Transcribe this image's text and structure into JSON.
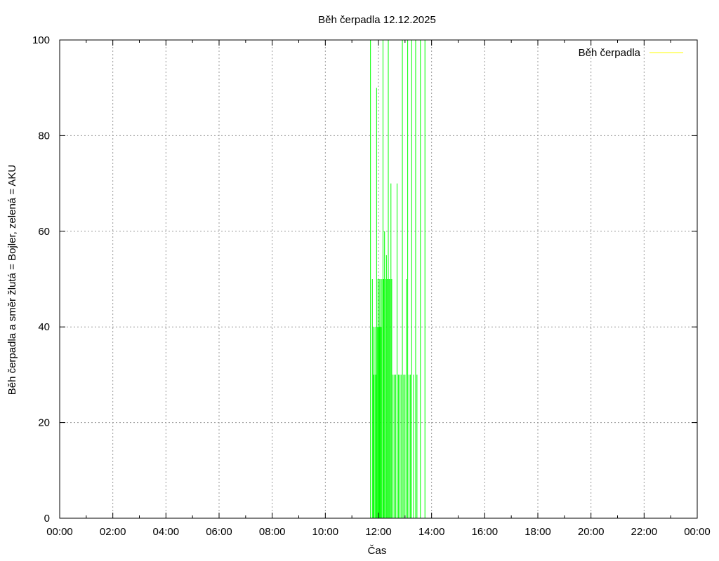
{
  "chart_data": {
    "type": "line",
    "title": "Běh čerpadla 12.12.2025",
    "xlabel": "Čas",
    "ylabel": "Běh čerpadla a směr žlutá = Bojler, zelená = AKU",
    "xlim": [
      0,
      24
    ],
    "ylim": [
      0,
      100
    ],
    "x_ticks": [
      {
        "value": 0,
        "label": "00:00"
      },
      {
        "value": 2,
        "label": "02:00"
      },
      {
        "value": 4,
        "label": "04:00"
      },
      {
        "value": 6,
        "label": "06:00"
      },
      {
        "value": 8,
        "label": "08:00"
      },
      {
        "value": 10,
        "label": "10:00"
      },
      {
        "value": 12,
        "label": "12:00"
      },
      {
        "value": 14,
        "label": "14:00"
      },
      {
        "value": 16,
        "label": "16:00"
      },
      {
        "value": 18,
        "label": "18:00"
      },
      {
        "value": 20,
        "label": "20:00"
      },
      {
        "value": 22,
        "label": "22:00"
      },
      {
        "value": 24,
        "label": "00:00"
      }
    ],
    "y_ticks": [
      {
        "value": 0,
        "label": "0"
      },
      {
        "value": 20,
        "label": "20"
      },
      {
        "value": 40,
        "label": "40"
      },
      {
        "value": 60,
        "label": "60"
      },
      {
        "value": 80,
        "label": "80"
      },
      {
        "value": 100,
        "label": "100"
      }
    ],
    "grid": true,
    "legend": {
      "position": "top-right"
    },
    "series": [
      {
        "name": "Běh čerpadla",
        "color": "#ffff00",
        "points": []
      },
      {
        "color": "#00ff00",
        "points": [
          [
            11.7,
            100
          ],
          [
            11.77,
            50
          ],
          [
            11.8,
            40
          ],
          [
            11.83,
            30
          ],
          [
            11.87,
            40
          ],
          [
            11.9,
            30
          ],
          [
            11.93,
            90
          ],
          [
            11.95,
            40
          ],
          [
            11.98,
            50
          ],
          [
            12.0,
            40
          ],
          [
            12.03,
            50
          ],
          [
            12.05,
            40
          ],
          [
            12.08,
            50
          ],
          [
            12.1,
            40
          ],
          [
            12.13,
            50
          ],
          [
            12.17,
            100
          ],
          [
            12.2,
            50
          ],
          [
            12.23,
            60
          ],
          [
            12.27,
            50
          ],
          [
            12.3,
            55
          ],
          [
            12.33,
            50
          ],
          [
            12.37,
            100
          ],
          [
            12.4,
            50
          ],
          [
            12.43,
            50
          ],
          [
            12.47,
            70
          ],
          [
            12.5,
            50
          ],
          [
            12.55,
            30
          ],
          [
            12.6,
            30
          ],
          [
            12.65,
            30
          ],
          [
            12.7,
            70
          ],
          [
            12.75,
            30
          ],
          [
            12.8,
            30
          ],
          [
            12.85,
            30
          ],
          [
            12.9,
            100
          ],
          [
            12.95,
            30
          ],
          [
            13.0,
            30
          ],
          [
            13.05,
            50
          ],
          [
            13.1,
            100
          ],
          [
            13.15,
            30
          ],
          [
            13.2,
            30
          ],
          [
            13.25,
            100
          ],
          [
            13.32,
            30
          ],
          [
            13.4,
            100
          ],
          [
            13.45,
            30
          ],
          [
            13.58,
            100
          ],
          [
            13.75,
            100
          ]
        ]
      }
    ]
  }
}
